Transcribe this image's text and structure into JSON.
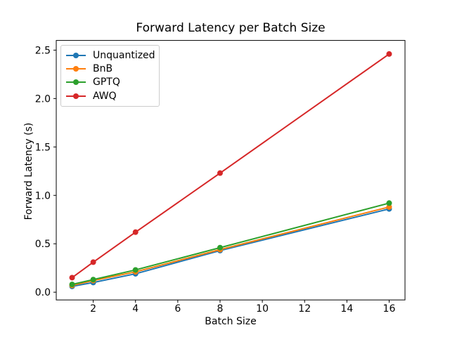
{
  "background_color": "#ffffff",
  "chart_data": {
    "type": "line",
    "title": "Forward Latency per Batch Size",
    "xlabel": "Batch Size",
    "ylabel": "Forward Latency (s)",
    "x": [
      1,
      2,
      4,
      8,
      16
    ],
    "series": [
      {
        "name": "Unquantized",
        "color": "#1f77b4",
        "values": [
          0.06,
          0.1,
          0.19,
          0.43,
          0.86
        ]
      },
      {
        "name": "BnB",
        "color": "#ff7f0e",
        "values": [
          0.07,
          0.12,
          0.21,
          0.44,
          0.88
        ]
      },
      {
        "name": "GPTQ",
        "color": "#2ca02c",
        "values": [
          0.08,
          0.13,
          0.23,
          0.46,
          0.92
        ]
      },
      {
        "name": "AWQ",
        "color": "#d62728",
        "values": [
          0.15,
          0.31,
          0.62,
          1.23,
          2.46
        ]
      }
    ],
    "xticks": [
      "2",
      "4",
      "6",
      "8",
      "10",
      "12",
      "14",
      "16"
    ],
    "yticks": [
      "0.0",
      "0.5",
      "1.0",
      "1.5",
      "2.0",
      "2.5"
    ],
    "xlim": [
      0.25,
      16.75
    ],
    "ylim": [
      -0.08,
      2.6
    ],
    "grid": false,
    "marker": "o",
    "legend_position": "upper-left",
    "axis_color": "#000000",
    "legend_border_color": "#cccccc"
  }
}
